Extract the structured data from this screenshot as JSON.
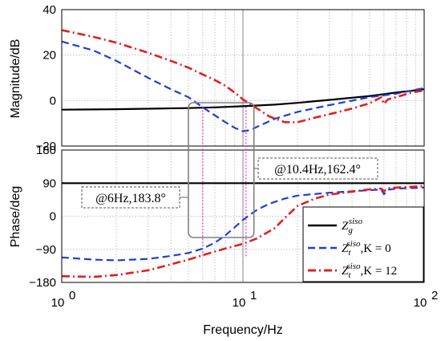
{
  "chart_data": [
    {
      "type": "line",
      "panel": "magnitude",
      "ylabel": "Magnitude/dB",
      "xscale": "log",
      "xlim": [
        1,
        100
      ],
      "ylim": [
        -20,
        40
      ],
      "yticks": [
        "40",
        "20",
        "0",
        "-20"
      ],
      "grid": true,
      "series": [
        {
          "key": "zg",
          "color": "#000000",
          "style": "solid",
          "x": [
            1,
            1.5,
            2,
            3,
            5,
            7,
            10,
            15,
            20,
            30,
            50,
            70,
            100
          ],
          "y": [
            -4,
            -3.9,
            -3.8,
            -3.6,
            -3.3,
            -3,
            -2.5,
            -1.8,
            -1,
            0.3,
            2,
            3.5,
            5
          ]
        },
        {
          "key": "zt0",
          "color": "#1f3fd6",
          "style": "dash",
          "x": [
            1,
            1.5,
            2,
            3,
            4,
            5,
            6,
            7,
            8,
            9,
            10,
            11,
            12,
            15,
            20,
            30,
            50,
            70,
            100
          ],
          "y": [
            26,
            22,
            17.5,
            10,
            5,
            1.5,
            -3,
            -6.5,
            -9.5,
            -12,
            -13.5,
            -13,
            -11.5,
            -8,
            -5,
            -2,
            1.5,
            3,
            5.5
          ]
        },
        {
          "key": "zt12",
          "color": "#e02020",
          "style": "dashdot",
          "x": [
            1,
            1.5,
            2,
            3,
            4,
            5,
            6,
            7,
            8,
            9,
            10,
            12,
            14,
            17,
            20,
            25,
            30,
            40,
            50,
            55,
            58,
            60,
            63,
            70,
            85,
            100
          ],
          "y": [
            31,
            28,
            25.5,
            21,
            17.5,
            14.5,
            11.5,
            9,
            6.5,
            3.5,
            0.5,
            -3.5,
            -7,
            -9.5,
            -9.5,
            -7.5,
            -6,
            -3.5,
            -1.2,
            0.5,
            1.5,
            -1.5,
            0.5,
            1.5,
            3.5,
            4.5
          ]
        }
      ]
    },
    {
      "type": "line",
      "panel": "phase",
      "ylabel": "Phase/deg",
      "xlabel": "Frequency/Hz",
      "xscale": "log",
      "xlim": [
        1,
        100
      ],
      "ylim": [
        -180,
        180
      ],
      "yticks": [
        "180",
        "90",
        "0",
        "-90",
        "-180"
      ],
      "xticks": [
        1,
        10,
        100
      ],
      "grid": true,
      "legend_position": "bottom-right",
      "series": [
        {
          "key": "zg",
          "color": "#000000",
          "style": "solid",
          "x": [
            1,
            100
          ],
          "y": [
            90,
            90
          ]
        },
        {
          "key": "zt0",
          "color": "#1f3fd6",
          "style": "dash",
          "x": [
            1,
            1.5,
            2,
            3,
            4,
            5,
            6,
            7,
            8,
            9,
            10,
            11,
            12,
            14,
            17,
            20,
            30,
            50,
            55,
            58,
            60,
            63,
            70,
            100
          ],
          "y": [
            -112,
            -118,
            -120,
            -116,
            -108,
            -100,
            -88,
            -72,
            -52,
            -30,
            -10,
            5,
            18,
            34,
            48,
            56,
            64,
            71,
            72,
            73,
            60,
            72,
            75,
            78
          ]
        },
        {
          "key": "zt12",
          "color": "#e02020",
          "style": "dashdot",
          "x": [
            1,
            1.5,
            2,
            3,
            4,
            5,
            6,
            7,
            8,
            10,
            12,
            15,
            17,
            20,
            25,
            30,
            40,
            50,
            58,
            60,
            63,
            70,
            100
          ],
          "y": [
            -163,
            -165,
            -160,
            -147,
            -131,
            -118,
            -106,
            -96,
            -88,
            -75,
            -60,
            -32,
            -5,
            28,
            48,
            59,
            67,
            73,
            75,
            68,
            76,
            78,
            82
          ]
        }
      ],
      "annotations": [
        {
          "text": "@6Hz,183.8°"
        },
        {
          "text": "@10.4Hz,162.4°"
        }
      ]
    }
  ],
  "legend": [
    {
      "key": "zg",
      "sym": "Z",
      "sub": "g",
      "sup": "siso",
      "suffix": ""
    },
    {
      "key": "zt0",
      "sym": "Z",
      "sub": "t",
      "sup": "siso",
      "suffix": ",K = 0"
    },
    {
      "key": "zt12",
      "sym": "Z",
      "sub": "t",
      "sup": "siso",
      "suffix": ",K = 12"
    }
  ]
}
